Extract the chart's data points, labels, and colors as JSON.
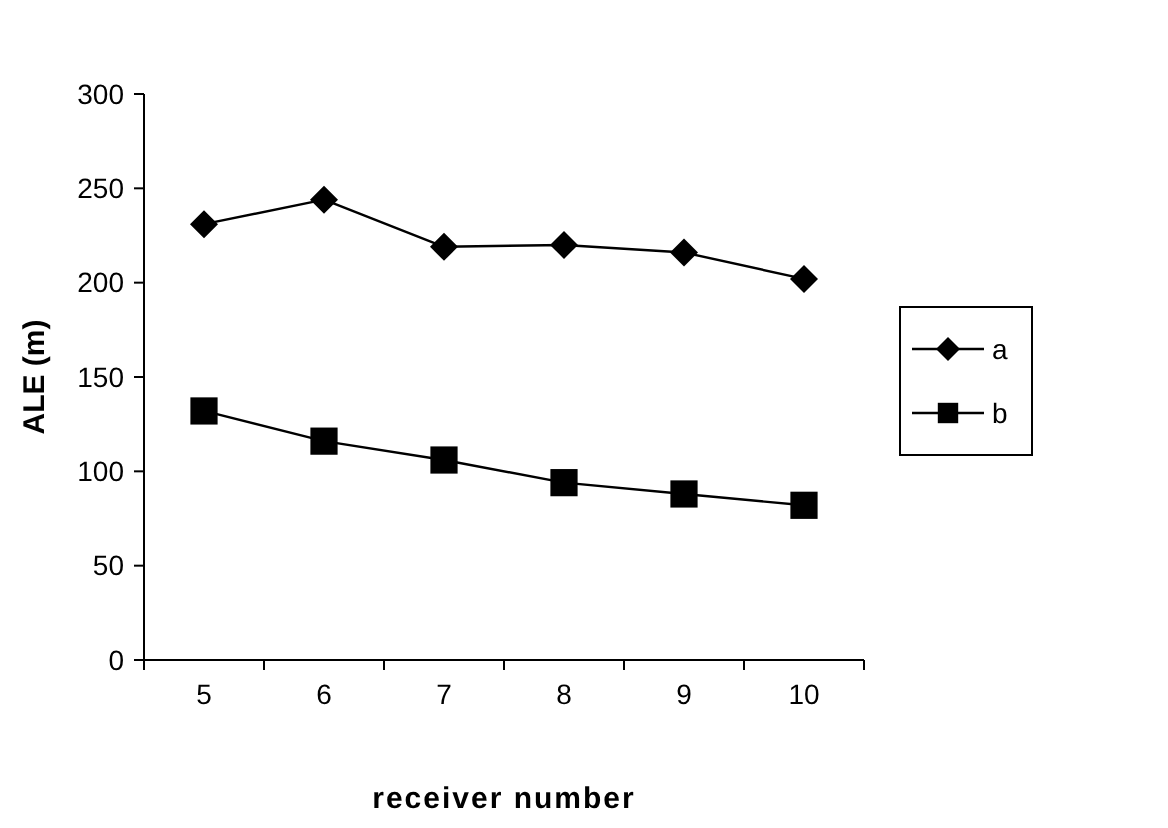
{
  "chart_data": {
    "type": "line",
    "xlabel": "receiver number",
    "ylabel": "ALE (m)",
    "categories": [
      "5",
      "6",
      "7",
      "8",
      "9",
      "10"
    ],
    "ylim": [
      0,
      300
    ],
    "yticks": [
      0,
      50,
      100,
      150,
      200,
      250,
      300
    ],
    "legend": "right",
    "grid": false,
    "series": [
      {
        "name": "a",
        "color": "#000000",
        "marker": "diamond",
        "values": [
          231,
          244,
          219,
          220,
          216,
          202
        ]
      },
      {
        "name": "b",
        "color": "#000000",
        "marker": "square",
        "values": [
          132,
          116,
          106,
          94,
          88,
          82
        ]
      }
    ]
  }
}
